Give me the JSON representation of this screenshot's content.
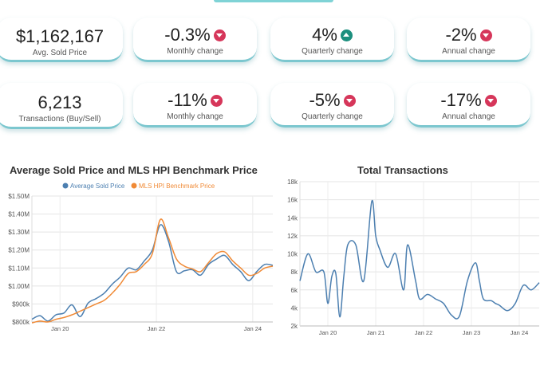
{
  "kpi_row1": [
    {
      "value": "$1,162,167",
      "label": "Avg. Sold Price",
      "trend": "none"
    },
    {
      "value": "-0.3%",
      "label": "Monthly change",
      "trend": "down"
    },
    {
      "value": "4%",
      "label": "Quarterly change",
      "trend": "up"
    },
    {
      "value": "-2%",
      "label": "Annual change",
      "trend": "down"
    }
  ],
  "kpi_row2": [
    {
      "value": "6,213",
      "label": "Transactions (Buy/Sell)",
      "trend": "none"
    },
    {
      "value": "-11%",
      "label": "Monthly  change",
      "trend": "down"
    },
    {
      "value": "-5%",
      "label": "Quarterly  change",
      "trend": "down"
    },
    {
      "value": "-17%",
      "label": "Annual change",
      "trend": "down"
    }
  ],
  "colors": {
    "down": "#d6365a",
    "up": "#1c8f7e",
    "blue": "#4c7fb0",
    "orange": "#f08a36"
  },
  "chart_data": [
    {
      "type": "line",
      "title": "Average Sold Price and MLS HPI Benchmark Price",
      "legend": "top",
      "ylim": [
        800000,
        1500000
      ],
      "yticks": [
        "$800k",
        "$900k",
        "$1.00M",
        "$1.10M",
        "$1.20M",
        "$1.30M",
        "$1.40M",
        "$1.50M"
      ],
      "xticks": [
        "Jan 20",
        "Jan 22",
        "Jan 24"
      ],
      "x_range": [
        "2019-06",
        "2024-06"
      ],
      "series": [
        {
          "name": "Average Sold Price",
          "color": "#4c7fb0",
          "x": [
            "2019-06",
            "2019-08",
            "2019-10",
            "2019-12",
            "2020-02",
            "2020-04",
            "2020-06",
            "2020-08",
            "2020-10",
            "2020-12",
            "2021-02",
            "2021-04",
            "2021-06",
            "2021-08",
            "2021-10",
            "2021-12",
            "2022-02",
            "2022-04",
            "2022-06",
            "2022-08",
            "2022-10",
            "2022-12",
            "2023-02",
            "2023-04",
            "2023-06",
            "2023-08",
            "2023-10",
            "2023-12",
            "2024-02",
            "2024-04",
            "2024-06"
          ],
          "y": [
            815000,
            835000,
            805000,
            840000,
            850000,
            895000,
            830000,
            905000,
            930000,
            960000,
            1010000,
            1050000,
            1100000,
            1090000,
            1140000,
            1200000,
            1340000,
            1250000,
            1080000,
            1085000,
            1090000,
            1060000,
            1120000,
            1150000,
            1170000,
            1120000,
            1080000,
            1030000,
            1080000,
            1120000,
            1115000
          ]
        },
        {
          "name": "MLS HPI Benchmark Price",
          "color": "#f08a36",
          "x": [
            "2019-06",
            "2019-08",
            "2019-10",
            "2019-12",
            "2020-02",
            "2020-04",
            "2020-06",
            "2020-08",
            "2020-10",
            "2020-12",
            "2021-02",
            "2021-04",
            "2021-06",
            "2021-08",
            "2021-10",
            "2021-12",
            "2022-02",
            "2022-04",
            "2022-06",
            "2022-08",
            "2022-10",
            "2022-12",
            "2023-02",
            "2023-04",
            "2023-06",
            "2023-08",
            "2023-10",
            "2023-12",
            "2024-02",
            "2024-04",
            "2024-06"
          ],
          "y": [
            795000,
            805000,
            800000,
            815000,
            825000,
            840000,
            860000,
            880000,
            900000,
            920000,
            960000,
            1010000,
            1070000,
            1080000,
            1120000,
            1180000,
            1370000,
            1270000,
            1150000,
            1110000,
            1095000,
            1080000,
            1130000,
            1180000,
            1190000,
            1140000,
            1100000,
            1060000,
            1070000,
            1100000,
            1110000
          ]
        }
      ]
    },
    {
      "type": "line",
      "title": "Total Transactions",
      "ylim": [
        2000,
        18000
      ],
      "yticks": [
        "2k",
        "4k",
        "6k",
        "8k",
        "10k",
        "12k",
        "14k",
        "16k",
        "18k"
      ],
      "xticks": [
        "Jan 20",
        "Jan 21",
        "Jan 22",
        "Jan 23",
        "Jan 24"
      ],
      "x_range": [
        "2019-06",
        "2024-06"
      ],
      "series": [
        {
          "color": "#4c7fb0",
          "x": [
            "2019-06",
            "2019-08",
            "2019-10",
            "2019-12",
            "2020-01",
            "2020-02",
            "2020-03",
            "2020-04",
            "2020-05",
            "2020-06",
            "2020-08",
            "2020-10",
            "2020-12",
            "2021-01",
            "2021-02",
            "2021-04",
            "2021-06",
            "2021-08",
            "2021-09",
            "2021-11",
            "2021-12",
            "2022-02",
            "2022-04",
            "2022-06",
            "2022-08",
            "2022-10",
            "2022-12",
            "2023-02",
            "2023-03",
            "2023-04",
            "2023-06",
            "2023-07",
            "2023-08",
            "2023-10",
            "2023-12",
            "2024-02",
            "2024-04",
            "2024-06"
          ],
          "y": [
            7000,
            10000,
            8000,
            8000,
            4500,
            7500,
            7800,
            3000,
            7500,
            11000,
            11000,
            7000,
            15800,
            12000,
            10500,
            8500,
            10000,
            6000,
            11000,
            7000,
            5000,
            5500,
            5000,
            4500,
            3200,
            3100,
            7000,
            9000,
            7000,
            5000,
            4800,
            4500,
            4300,
            3700,
            4500,
            6500,
            6000,
            6800
          ]
        }
      ]
    }
  ]
}
